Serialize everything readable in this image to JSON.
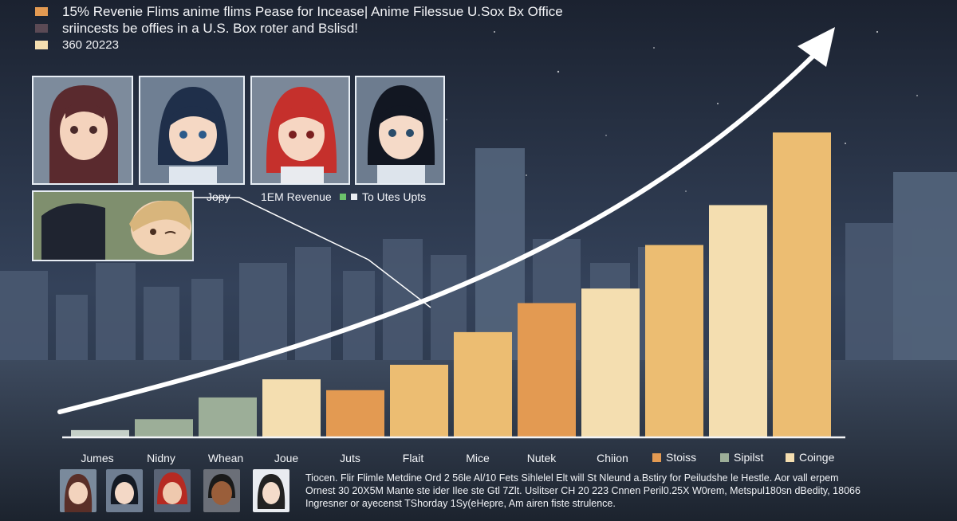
{
  "header": {
    "title": "15% Revenie Flims anime flims Pease for Incease| Anime Filessue U.Sox Bx Office",
    "subtitle": "sriincests be offies in a U.S. Box roter and Bslisd!",
    "date_line": "360 20223"
  },
  "captions": {
    "jopy": "Jopy",
    "revenue_label": "1EM Revenue",
    "uptrend_label": "To Utes Upts"
  },
  "legend": [
    {
      "label": "Stoiss",
      "color": "#e39a52"
    },
    {
      "label": "Sipilst",
      "color": "#9cae98"
    },
    {
      "label": "Coinge",
      "color": "#f4deb0"
    }
  ],
  "colors": {
    "orange": "#e39a52",
    "peach": "#ecbd72",
    "cream": "#f4deb0",
    "sage": "#9cae98",
    "mint": "#c5d0c8",
    "axis": "#f2f4f7",
    "arrow": "#ffffff"
  },
  "chart_data": {
    "type": "bar",
    "categories": [
      "Jumes",
      "Nidny",
      "Whean",
      "Joue",
      "Juts",
      "Flait",
      "Mice",
      "Nutek",
      "Chiion",
      "Stoiss",
      "Sipilst",
      "Coinge"
    ],
    "values": [
      2,
      5,
      11,
      16,
      13,
      20,
      29,
      37,
      41,
      53,
      64,
      84
    ],
    "colors": [
      "mint",
      "sage",
      "sage",
      "cream",
      "orange",
      "peach",
      "peach",
      "orange",
      "cream",
      "peach",
      "cream",
      "peach"
    ],
    "ylim": [
      0,
      90
    ],
    "trend_arrow": true
  },
  "footnote": [
    "Tiocen. Flir Flimle Metdine  Ord 2 56le Al/10 Fets Sihlelel Elt will St Nleund a.Bstiry for Peiludshe le Hestle. Aor vall erpem",
    "Ornest 30 20X5M Mante ste ider Ilee ste Gtl 7Zlt. Uslitser CH 20 223 Cnnen Peril0.25X W0rem, Metspul180sn dBedity, 18066",
    "Ingresner or ayecenst TShorday 1Sy(eHepre, Am airen fiste strulence."
  ]
}
